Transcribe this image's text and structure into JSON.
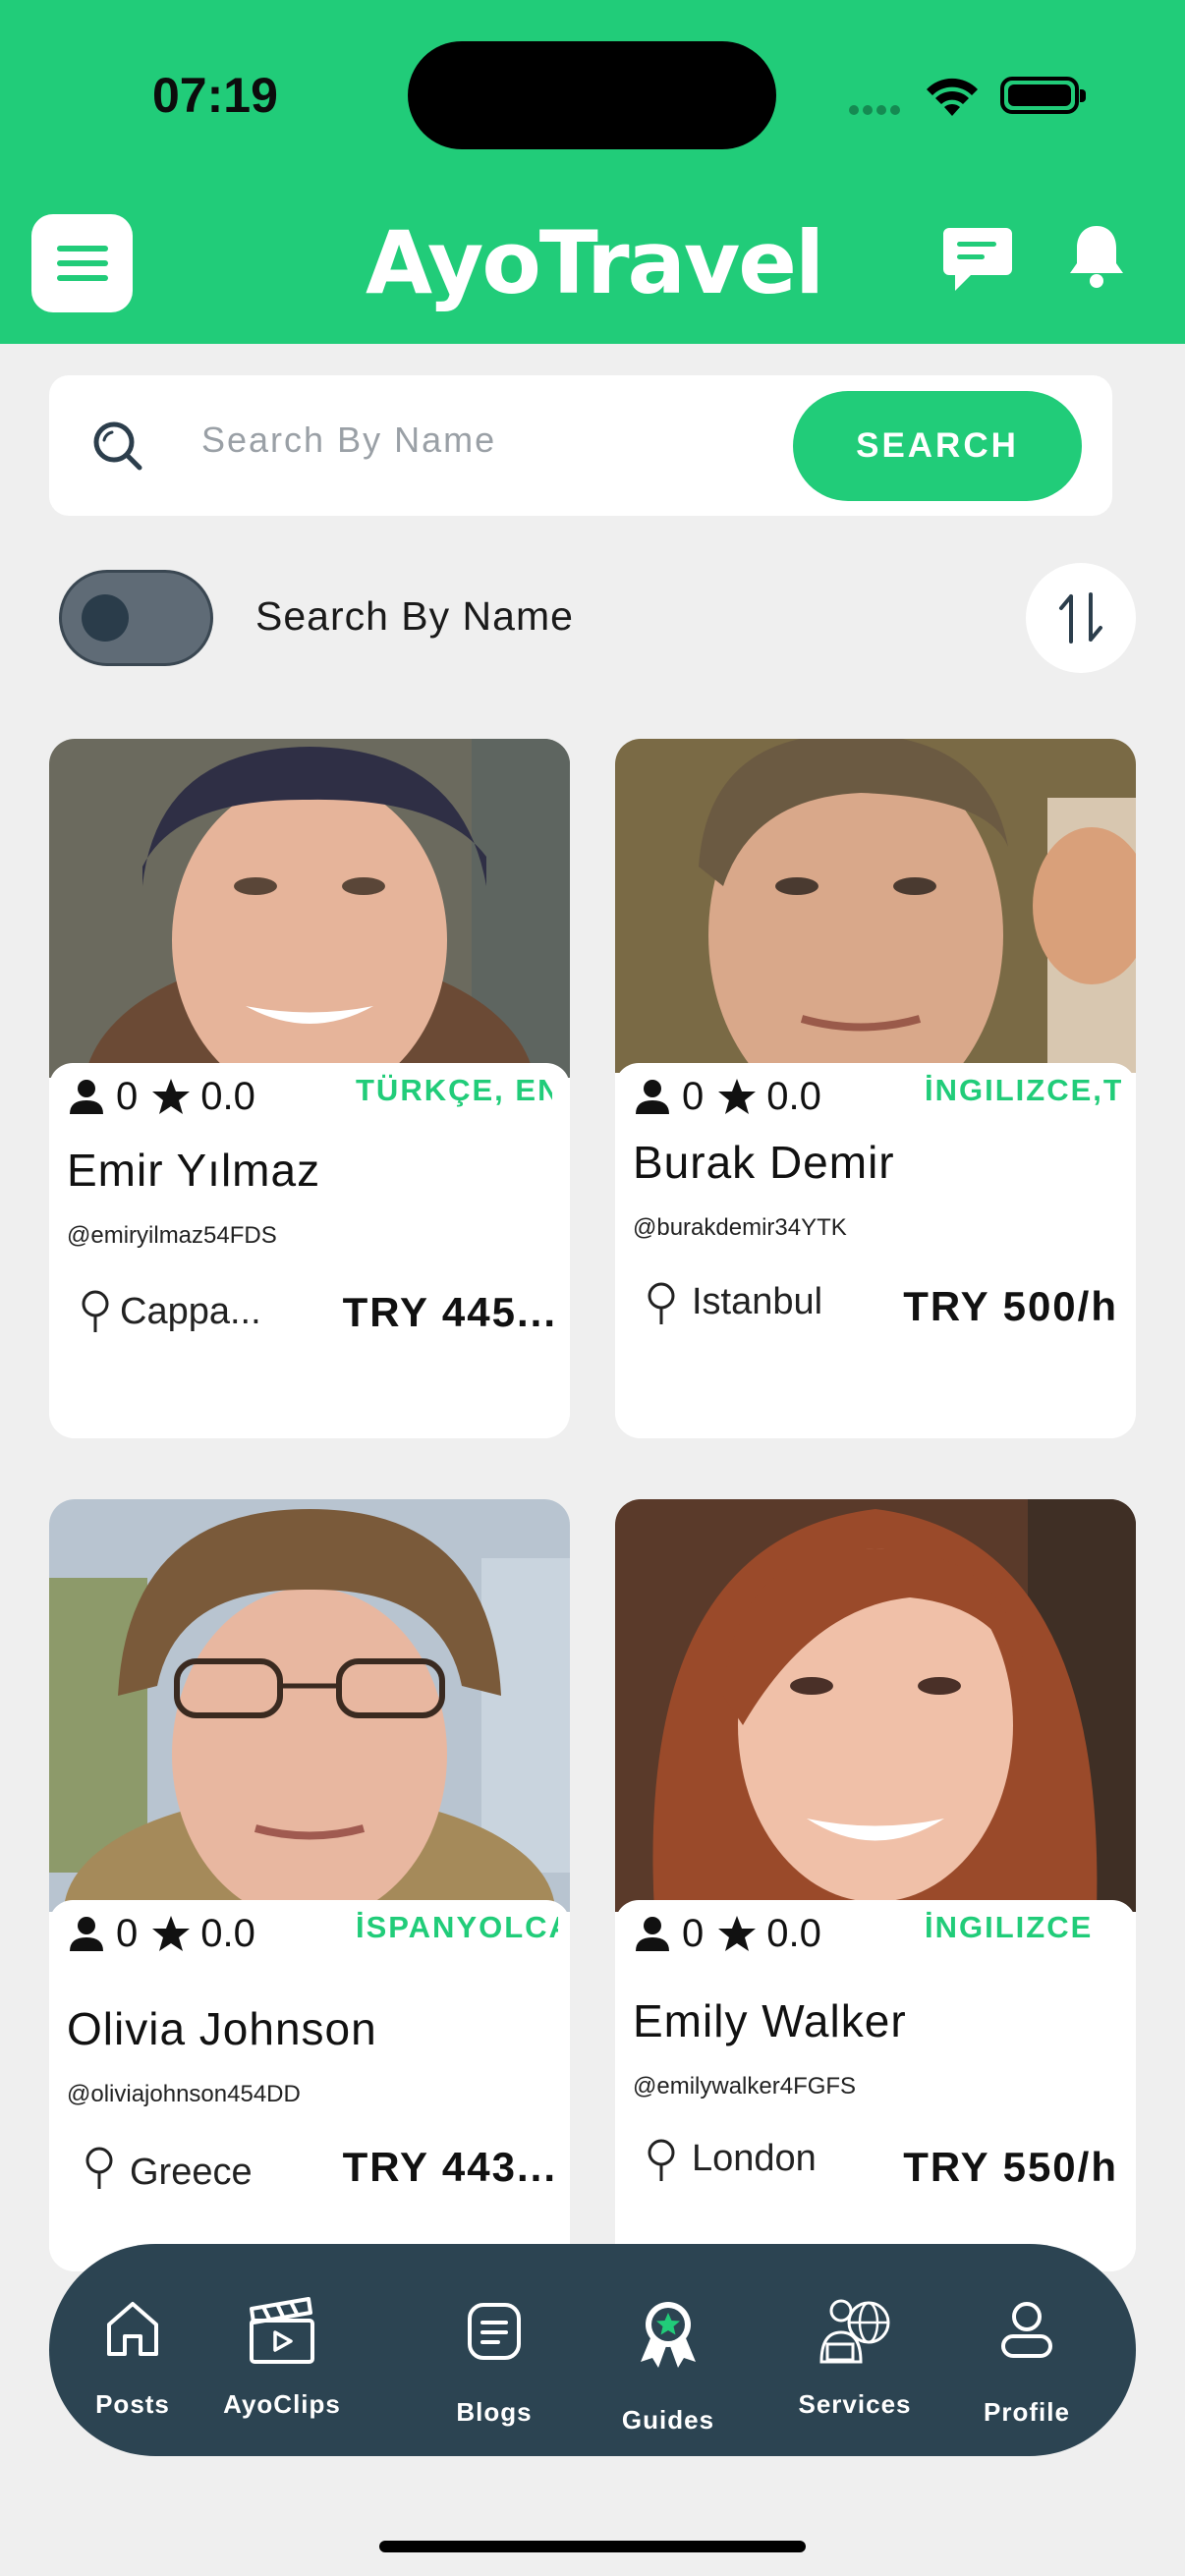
{
  "status_bar": {
    "time": "07:19"
  },
  "header": {
    "logo_text": "AyoTravel",
    "menu_icon": "hamburger-icon",
    "chat_icon": "chat-icon",
    "bell_icon": "bell-icon",
    "brand_color": "#21cc79"
  },
  "search": {
    "placeholder": "Search By Name",
    "button_label": "SEARCH"
  },
  "filter": {
    "toggle_label": "Search By Name",
    "toggle_on": false,
    "sort_icon": "sort-arrows-icon"
  },
  "guides": [
    {
      "followers": "0",
      "rating": "0.0",
      "languages": "TÜRKÇE, ENG",
      "name": "Emir Yılmaz",
      "handle": "@emiryilmaz54FDS",
      "location": "Cappa...",
      "price": "TRY 445..."
    },
    {
      "followers": "0",
      "rating": "0.0",
      "languages": "İNGILIZCE,T",
      "name": "Burak Demir",
      "handle": "@burakdemir34YTK",
      "location": "Istanbul",
      "price": "TRY 500/h"
    },
    {
      "followers": "0",
      "rating": "0.0",
      "languages": "İSPANYOLCA",
      "name": "Olivia Johnson",
      "handle": "@oliviajohnson454DD",
      "location": "Greece",
      "price": "TRY 443..."
    },
    {
      "followers": "0",
      "rating": "0.0",
      "languages": "İNGILIZCE",
      "name": "Emily Walker",
      "handle": "@emilywalker4FGFS",
      "location": "London",
      "price": "TRY 550/h"
    }
  ],
  "nav": {
    "items": [
      {
        "label": "Posts",
        "icon": "home-icon"
      },
      {
        "label": "AyoClips",
        "icon": "clapperboard-icon"
      },
      {
        "label": "Blogs",
        "icon": "blog-icon"
      },
      {
        "label": "Guides",
        "icon": "guide-badge-icon",
        "active": true
      },
      {
        "label": "Services",
        "icon": "services-icon"
      },
      {
        "label": "Profile",
        "icon": "profile-icon"
      }
    ]
  }
}
